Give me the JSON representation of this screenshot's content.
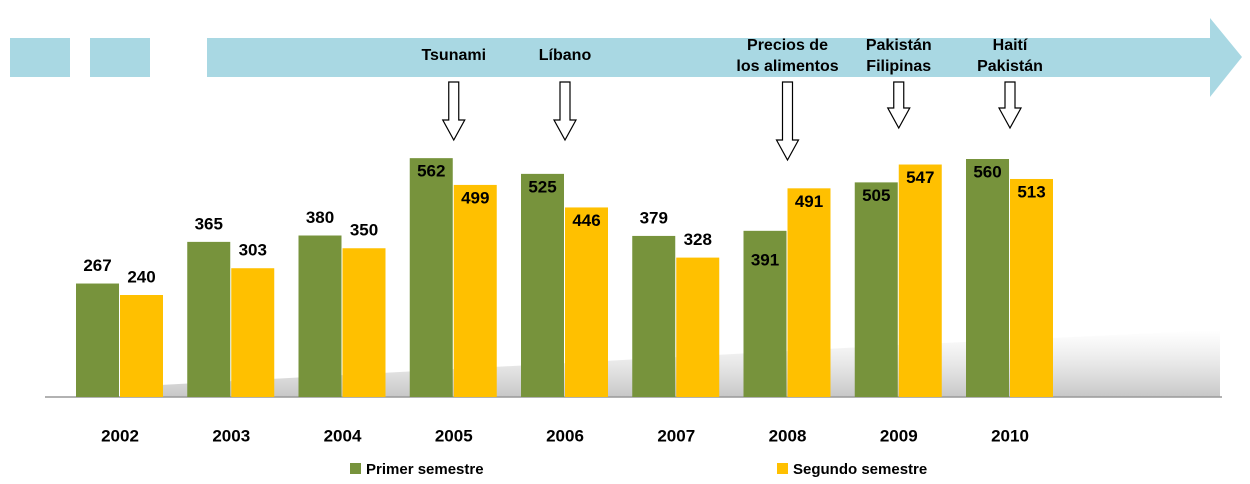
{
  "chart_data": {
    "type": "bar",
    "categories": [
      "2002",
      "2003",
      "2004",
      "2005",
      "2006",
      "2007",
      "2008",
      "2009",
      "2010"
    ],
    "series": [
      {
        "name": "Primer semestre",
        "color": "#77933c",
        "values": [
          267,
          365,
          380,
          562,
          525,
          379,
          391,
          505,
          560
        ]
      },
      {
        "name": "Segundo semestre",
        "color": "#ffc000",
        "values": [
          240,
          303,
          350,
          499,
          446,
          328,
          491,
          547,
          513
        ]
      }
    ],
    "ylim": [
      0,
      600
    ],
    "annotations": [
      {
        "category": "2005",
        "text": "Tsunami"
      },
      {
        "category": "2006",
        "text": "Líbano"
      },
      {
        "category": "2008",
        "text": "Precios de los alimentos"
      },
      {
        "category": "2009",
        "text": "Pakistán Filipinas"
      },
      {
        "category": "2010",
        "text": "Haití Pakistán"
      }
    ]
  }
}
